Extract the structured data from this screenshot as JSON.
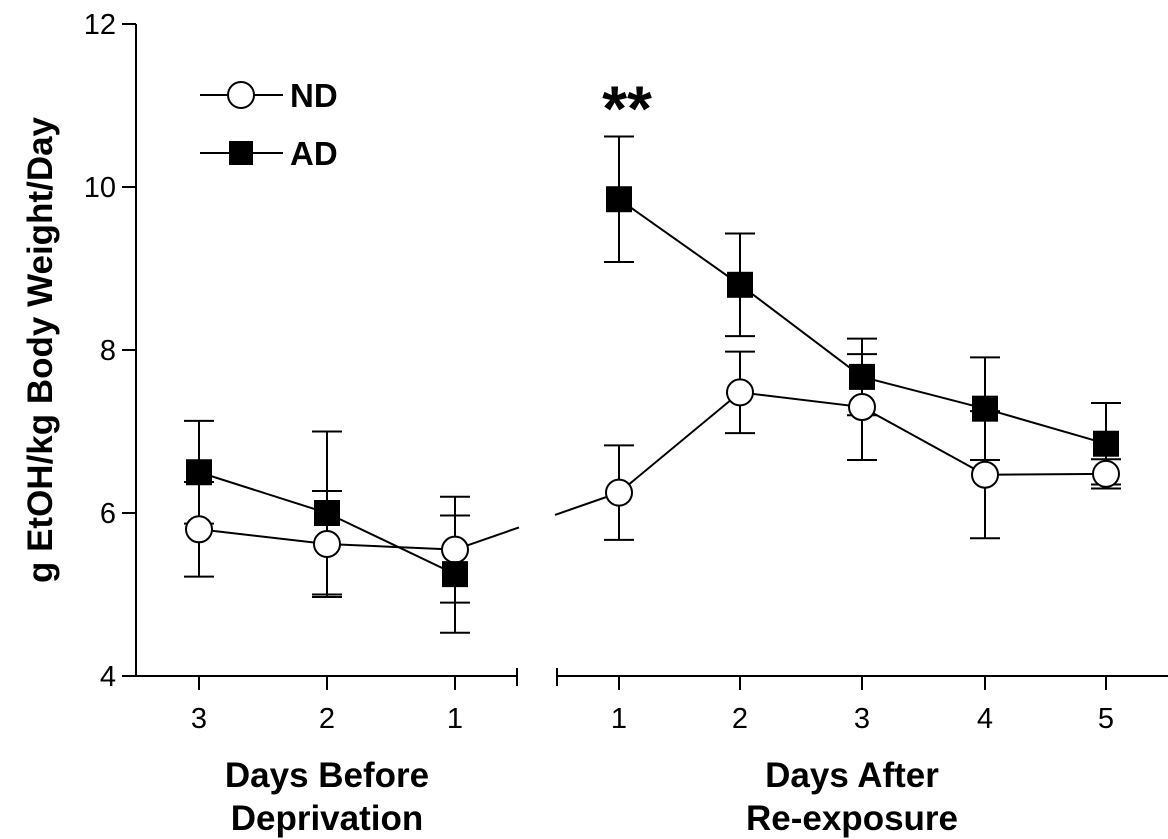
{
  "chart_data": {
    "type": "line",
    "ylabel": "g EtOH/kg Body Weight/Day",
    "ylim": [
      4,
      12
    ],
    "yticks": [
      "4",
      "6",
      "8",
      "10",
      "12"
    ],
    "groups": [
      {
        "xlabel_line1": "Days Before",
        "xlabel_line2": "Deprivation",
        "categories": [
          "3",
          "2",
          "1"
        ]
      },
      {
        "xlabel_line1": "Days After",
        "xlabel_line2": "Re-exposure",
        "categories": [
          "1",
          "2",
          "3",
          "4",
          "5"
        ]
      }
    ],
    "series": [
      {
        "name": "ND",
        "marker": "open-circle",
        "before": {
          "values": [
            5.8,
            5.62,
            5.55
          ],
          "err": [
            0.58,
            0.65,
            0.65
          ]
        },
        "after": {
          "values": [
            6.25,
            7.48,
            7.3,
            6.47,
            6.48
          ],
          "err": [
            0.58,
            0.5,
            0.65,
            0.78,
            0.18
          ]
        }
      },
      {
        "name": "AD",
        "marker": "filled-square",
        "before": {
          "values": [
            6.5,
            6.0,
            5.25
          ],
          "err": [
            0.63,
            1.0,
            0.72
          ]
        },
        "after": {
          "values": [
            9.85,
            8.8,
            7.67,
            7.28,
            6.85
          ],
          "err": [
            0.77,
            0.63,
            0.47,
            0.63,
            0.5
          ]
        }
      }
    ],
    "annotations": [
      {
        "text": "**",
        "group": 1,
        "index": 0
      }
    ],
    "legend_position": "top-left",
    "grid": false
  }
}
